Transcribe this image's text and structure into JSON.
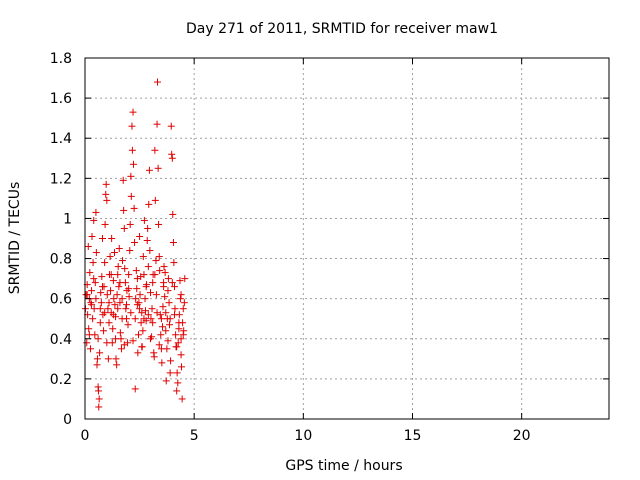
{
  "chart_data": {
    "type": "scatter",
    "title": "Day 271 of 2011, SRMTID for receiver maw1",
    "xlabel": "GPS time / hours",
    "ylabel": "SRMTID / TECUs",
    "xlim": [
      0,
      24
    ],
    "ylim": [
      0,
      1.8
    ],
    "xticks": [
      0,
      5,
      10,
      15,
      20
    ],
    "yticks": [
      0,
      0.2,
      0.4,
      0.6,
      0.8,
      1,
      1.2,
      1.4,
      1.6,
      1.8
    ],
    "xtick_labels": [
      "0",
      "5",
      "10",
      "15",
      "20"
    ],
    "ytick_labels": [
      "0",
      "0.2",
      "0.4",
      "0.6",
      "0.8",
      "1",
      "1.2",
      "1.4",
      "1.6",
      "1.8"
    ],
    "grid": true,
    "marker": "+",
    "color": "#e00000",
    "series": [
      {
        "name": "maw1",
        "points": [
          [
            0.02,
            0.55
          ],
          [
            0.05,
            0.62
          ],
          [
            0.08,
            0.38
          ],
          [
            0.1,
            0.67
          ],
          [
            0.12,
            0.52
          ],
          [
            0.15,
            0.86
          ],
          [
            0.17,
            0.45
          ],
          [
            0.2,
            0.6
          ],
          [
            0.22,
            0.73
          ],
          [
            0.25,
            0.35
          ],
          [
            0.27,
            0.58
          ],
          [
            0.3,
            0.64
          ],
          [
            0.32,
            0.91
          ],
          [
            0.35,
            0.5
          ],
          [
            0.37,
            0.78
          ],
          [
            0.4,
            0.99
          ],
          [
            0.42,
            0.55
          ],
          [
            0.45,
            0.42
          ],
          [
            0.47,
            0.68
          ],
          [
            0.5,
            1.03
          ],
          [
            0.52,
            0.83
          ],
          [
            0.55,
            0.27
          ],
          [
            0.57,
            0.3
          ],
          [
            0.6,
            0.16
          ],
          [
            0.62,
            0.14
          ],
          [
            0.63,
            0.06
          ],
          [
            0.65,
            0.1
          ],
          [
            0.67,
            0.33
          ],
          [
            0.7,
            0.48
          ],
          [
            0.72,
            0.63
          ],
          [
            0.75,
            0.58
          ],
          [
            0.77,
            0.71
          ],
          [
            0.8,
            0.9
          ],
          [
            0.82,
            0.52
          ],
          [
            0.85,
            0.44
          ],
          [
            0.87,
            0.66
          ],
          [
            0.9,
            0.78
          ],
          [
            0.92,
            0.97
          ],
          [
            0.95,
            1.12
          ],
          [
            0.97,
            1.17
          ],
          [
            1.0,
            1.09
          ],
          [
            1.02,
            0.62
          ],
          [
            1.05,
            0.55
          ],
          [
            1.07,
            0.3
          ],
          [
            1.1,
            0.48
          ],
          [
            1.12,
            0.72
          ],
          [
            1.15,
            0.81
          ],
          [
            1.17,
            0.64
          ],
          [
            1.2,
            0.53
          ],
          [
            1.22,
            0.9
          ],
          [
            1.25,
            0.38
          ],
          [
            1.27,
            0.45
          ],
          [
            1.3,
            0.69
          ],
          [
            1.32,
            0.6
          ],
          [
            1.35,
            0.83
          ],
          [
            1.37,
            0.57
          ],
          [
            1.4,
            0.51
          ],
          [
            1.42,
            0.3
          ],
          [
            1.45,
            0.27
          ],
          [
            1.47,
            0.62
          ],
          [
            1.5,
            0.72
          ],
          [
            1.52,
            0.76
          ],
          [
            1.55,
            0.66
          ],
          [
            1.57,
            0.85
          ],
          [
            1.6,
            0.58
          ],
          [
            1.62,
            0.43
          ],
          [
            1.65,
            0.4
          ],
          [
            1.67,
            0.35
          ],
          [
            1.7,
            0.6
          ],
          [
            1.72,
            0.79
          ],
          [
            1.75,
            1.19
          ],
          [
            1.77,
            1.04
          ],
          [
            1.8,
            0.95
          ],
          [
            1.82,
            0.75
          ],
          [
            1.85,
            0.68
          ],
          [
            1.87,
            0.55
          ],
          [
            1.9,
            0.5
          ],
          [
            1.92,
            0.64
          ],
          [
            1.95,
            0.38
          ],
          [
            1.97,
            0.47
          ],
          [
            2.0,
            0.72
          ],
          [
            2.02,
            0.61
          ],
          [
            2.05,
            0.84
          ],
          [
            2.07,
            0.97
          ],
          [
            2.1,
            1.21
          ],
          [
            2.12,
            1.11
          ],
          [
            2.15,
            1.46
          ],
          [
            2.17,
            1.34
          ],
          [
            2.2,
            1.53
          ],
          [
            2.22,
            1.27
          ],
          [
            2.25,
            1.05
          ],
          [
            2.27,
            0.88
          ],
          [
            2.3,
            0.15
          ],
          [
            2.32,
            0.6
          ],
          [
            2.35,
            0.74
          ],
          [
            2.37,
            0.65
          ],
          [
            2.4,
            0.57
          ],
          [
            2.42,
            0.33
          ],
          [
            2.45,
            0.42
          ],
          [
            2.47,
            0.58
          ],
          [
            2.5,
            0.91
          ],
          [
            2.52,
            0.62
          ],
          [
            2.55,
            0.71
          ],
          [
            2.57,
            0.48
          ],
          [
            2.6,
            0.53
          ],
          [
            2.62,
            0.36
          ],
          [
            2.65,
            0.44
          ],
          [
            2.67,
            0.81
          ],
          [
            2.7,
            0.72
          ],
          [
            2.72,
            0.99
          ],
          [
            2.75,
            0.6
          ],
          [
            2.77,
            0.54
          ],
          [
            2.8,
            0.49
          ],
          [
            2.82,
            0.67
          ],
          [
            2.85,
            0.89
          ],
          [
            2.87,
            0.95
          ],
          [
            2.9,
            0.76
          ],
          [
            2.92,
            1.07
          ],
          [
            2.95,
            1.24
          ],
          [
            2.97,
            0.84
          ],
          [
            3.0,
            0.63
          ],
          [
            3.02,
            0.5
          ],
          [
            3.05,
            0.41
          ],
          [
            3.07,
            0.55
          ],
          [
            3.1,
            0.68
          ],
          [
            3.12,
            0.72
          ],
          [
            3.15,
            0.33
          ],
          [
            3.17,
            0.31
          ],
          [
            3.2,
            1.34
          ],
          [
            3.22,
            1.09
          ],
          [
            3.25,
            0.79
          ],
          [
            3.27,
            0.62
          ],
          [
            3.3,
            1.47
          ],
          [
            3.32,
            1.68
          ],
          [
            3.35,
            1.25
          ],
          [
            3.37,
            0.97
          ],
          [
            3.4,
            0.81
          ],
          [
            3.42,
            0.74
          ],
          [
            3.45,
            0.52
          ],
          [
            3.47,
            0.42
          ],
          [
            3.5,
            0.35
          ],
          [
            3.52,
            0.28
          ],
          [
            3.55,
            0.46
          ],
          [
            3.57,
            0.56
          ],
          [
            3.6,
            0.68
          ],
          [
            3.62,
            0.76
          ],
          [
            3.65,
            0.61
          ],
          [
            3.67,
            0.73
          ],
          [
            3.7,
            0.44
          ],
          [
            3.72,
            0.19
          ],
          [
            3.75,
            0.35
          ],
          [
            3.77,
            0.5
          ],
          [
            3.8,
            0.64
          ],
          [
            3.82,
            0.7
          ],
          [
            3.85,
            0.58
          ],
          [
            3.87,
            0.47
          ],
          [
            3.9,
            0.23
          ],
          [
            3.92,
            0.29
          ],
          [
            3.95,
            1.46
          ],
          [
            3.97,
            1.32
          ],
          [
            4.0,
            1.3
          ],
          [
            4.02,
            1.02
          ],
          [
            4.05,
            0.88
          ],
          [
            4.07,
            0.78
          ],
          [
            4.1,
            0.66
          ],
          [
            4.12,
            0.55
          ],
          [
            4.15,
            0.42
          ],
          [
            4.17,
            0.36
          ],
          [
            4.2,
            0.14
          ],
          [
            4.22,
            0.23
          ],
          [
            4.25,
            0.18
          ],
          [
            4.27,
            0.38
          ],
          [
            4.3,
            0.45
          ],
          [
            4.32,
            0.52
          ],
          [
            4.35,
            0.69
          ],
          [
            4.37,
            0.6
          ],
          [
            4.4,
            0.32
          ],
          [
            4.42,
            0.26
          ],
          [
            4.45,
            0.1
          ],
          [
            4.47,
            0.48
          ],
          [
            4.5,
            0.55
          ],
          [
            4.52,
            0.44
          ],
          [
            4.55,
            0.58
          ],
          [
            4.57,
            0.7
          ],
          [
            0.1,
            0.62
          ],
          [
            0.3,
            0.57
          ],
          [
            0.5,
            0.6
          ],
          [
            0.7,
            0.55
          ],
          [
            0.9,
            0.53
          ],
          [
            1.1,
            0.58
          ],
          [
            1.3,
            0.52
          ],
          [
            1.5,
            0.55
          ],
          [
            1.7,
            0.5
          ],
          [
            1.9,
            0.57
          ],
          [
            2.1,
            0.53
          ],
          [
            2.3,
            0.5
          ],
          [
            2.5,
            0.55
          ],
          [
            2.7,
            0.5
          ],
          [
            2.9,
            0.52
          ],
          [
            3.1,
            0.48
          ],
          [
            3.3,
            0.53
          ],
          [
            3.5,
            0.5
          ],
          [
            3.7,
            0.53
          ],
          [
            3.9,
            0.5
          ],
          [
            4.1,
            0.52
          ],
          [
            4.3,
            0.48
          ],
          [
            4.5,
            0.42
          ],
          [
            0.2,
            0.42
          ],
          [
            0.6,
            0.4
          ],
          [
            1.0,
            0.38
          ],
          [
            1.4,
            0.4
          ],
          [
            1.8,
            0.37
          ],
          [
            2.2,
            0.39
          ],
          [
            2.6,
            0.36
          ],
          [
            3.0,
            0.4
          ],
          [
            3.4,
            0.37
          ],
          [
            3.8,
            0.39
          ],
          [
            4.2,
            0.36
          ],
          [
            4.4,
            0.4
          ],
          [
            0.4,
            0.7
          ],
          [
            0.8,
            0.66
          ],
          [
            1.2,
            0.72
          ],
          [
            1.6,
            0.68
          ],
          [
            2.0,
            0.65
          ],
          [
            2.4,
            0.7
          ],
          [
            2.8,
            0.66
          ],
          [
            3.2,
            0.72
          ],
          [
            3.6,
            0.66
          ],
          [
            4.0,
            0.68
          ],
          [
            4.4,
            0.62
          ]
        ]
      }
    ]
  }
}
